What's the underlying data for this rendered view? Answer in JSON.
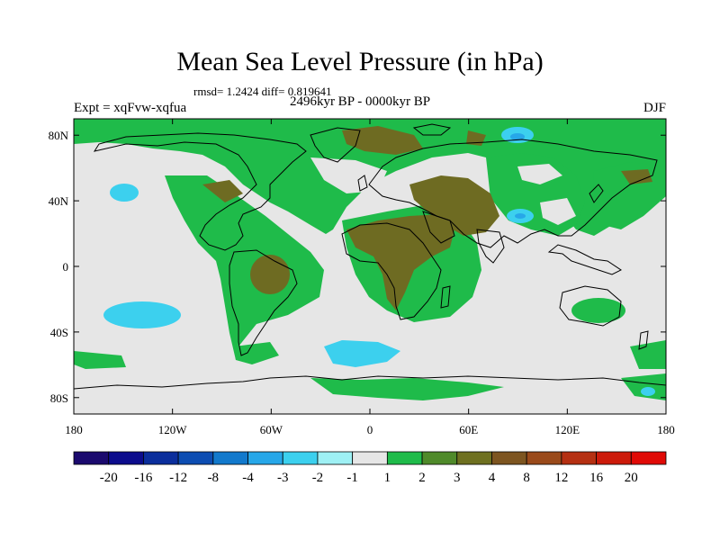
{
  "title": "Mean Sea Level Pressure (in hPa)",
  "stats": "rmsd= 1.2424  diff= 0.819641",
  "period": "2496kyr BP - 0000kyr BP",
  "expt": "Expt = xqFvw-xqfua",
  "season": "DJF",
  "map": {
    "lon_range": [
      -180,
      180
    ],
    "lat_range": [
      -90,
      90
    ],
    "x_ticks": [
      {
        "value": -180,
        "label": "180"
      },
      {
        "value": -120,
        "label": "120W"
      },
      {
        "value": -60,
        "label": "60W"
      },
      {
        "value": 0,
        "label": "0"
      },
      {
        "value": 60,
        "label": "60E"
      },
      {
        "value": 120,
        "label": "120E"
      },
      {
        "value": 180,
        "label": "180"
      }
    ],
    "y_ticks": [
      {
        "value": 80,
        "label": "80N"
      },
      {
        "value": 40,
        "label": "40N"
      },
      {
        "value": 0,
        "label": "0"
      },
      {
        "value": -40,
        "label": "40S"
      },
      {
        "value": -80,
        "label": "80S"
      }
    ]
  },
  "colorbar": {
    "colors": [
      "#1b0a6e",
      "#0c0c8c",
      "#0b2e9c",
      "#0d4db2",
      "#1279cc",
      "#27a7e8",
      "#3cd0ee",
      "#9ef0f4",
      "#e6e6e6",
      "#1fbb4a",
      "#4f8a2a",
      "#6e7020",
      "#7d5520",
      "#9a4a1a",
      "#b53012",
      "#cc1a0a",
      "#e00a06"
    ],
    "labels": [
      "-20",
      "-16",
      "-12",
      "-8",
      "-4",
      "-3",
      "-2",
      "-1",
      "1",
      "2",
      "3",
      "4",
      "8",
      "12",
      "16",
      "20"
    ]
  },
  "style": {
    "ocean_base": "#e6e6e6",
    "positive_1_2": "#1fbb4a",
    "positive_3_4": "#6e6b22",
    "negative_2_1": "#3cd0ee",
    "negative_3_2": "#27a7e8"
  }
}
